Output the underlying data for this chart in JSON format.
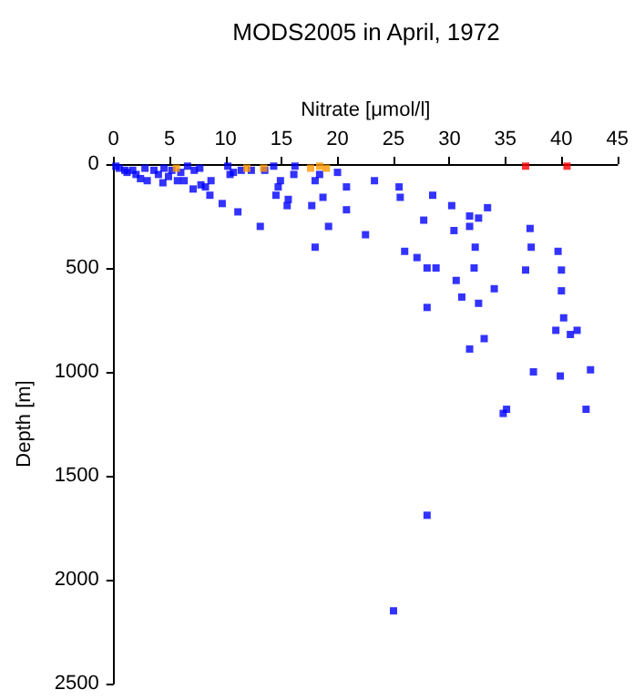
{
  "chart_data": {
    "type": "scatter",
    "title": "MODS2005 in April, 1972",
    "xlabel": "Nitrate [μmol/l]",
    "ylabel": "Depth [m]",
    "xlim": [
      0,
      45
    ],
    "xticks": [
      0,
      5,
      10,
      15,
      20,
      25,
      30,
      35,
      40,
      45
    ],
    "ylim": [
      2500,
      0
    ],
    "yticks": [
      0,
      500,
      1000,
      1500,
      2000,
      2500
    ],
    "grid": false,
    "marker": "square",
    "series": [
      {
        "color": "#0000ff",
        "x": [
          0.2,
          0.5,
          1,
          1.2,
          1.7,
          2,
          2.4,
          3,
          2.8,
          3.6,
          4,
          4.4,
          4.5,
          4.9,
          5.2,
          5.7,
          6,
          6.3,
          6.6,
          7.2,
          7.1,
          7.7,
          7.8,
          8.2,
          8.7,
          8.6,
          9.7,
          10.2,
          10.4,
          10.7,
          11.1,
          11.4,
          12.3,
          13.1,
          13.5,
          14.3,
          14.9,
          14.7,
          14.5,
          15.6,
          15.5,
          16.2,
          16.1,
          18,
          18.4,
          18.7,
          17.7,
          19.2,
          18,
          20,
          20.8,
          20.8,
          22.5,
          23.3,
          25.5,
          25.6,
          28.5,
          30.2,
          27.7,
          31.8,
          32.6,
          33.4,
          31.8,
          30.4,
          37.2,
          32.3,
          26,
          27.1,
          37.3,
          39.7,
          28,
          28.8,
          32.2,
          36.8,
          40,
          30.6,
          34,
          31.1,
          32.6,
          40,
          28,
          40.2,
          39.5,
          40.8,
          41.4,
          33.1,
          31.8,
          37.5,
          39.9,
          42.6,
          42.2,
          34.8,
          35.1,
          28,
          25
        ],
        "values": [
          10,
          20,
          30,
          40,
          30,
          50,
          70,
          80,
          20,
          30,
          50,
          90,
          20,
          60,
          30,
          80,
          40,
          80,
          10,
          30,
          120,
          20,
          100,
          110,
          80,
          150,
          190,
          10,
          50,
          40,
          230,
          30,
          30,
          300,
          30,
          10,
          80,
          110,
          150,
          170,
          200,
          10,
          50,
          80,
          50,
          160,
          200,
          300,
          400,
          40,
          110,
          220,
          340,
          80,
          110,
          160,
          150,
          200,
          270,
          250,
          260,
          210,
          300,
          320,
          310,
          400,
          420,
          450,
          400,
          420,
          500,
          500,
          500,
          510,
          510,
          560,
          600,
          640,
          670,
          610,
          690,
          740,
          800,
          820,
          800,
          840,
          890,
          1000,
          1020,
          990,
          1180,
          1200,
          1180,
          1690,
          2150
        ]
      },
      {
        "color": "#ff9900",
        "x": [
          5.6,
          11.9,
          13.4,
          17.6,
          18.4,
          19
        ],
        "values": [
          20,
          20,
          20,
          20,
          10,
          20
        ]
      },
      {
        "color": "#ff0000",
        "x": [
          36.8,
          40.5
        ],
        "values": [
          10,
          10
        ]
      }
    ]
  }
}
